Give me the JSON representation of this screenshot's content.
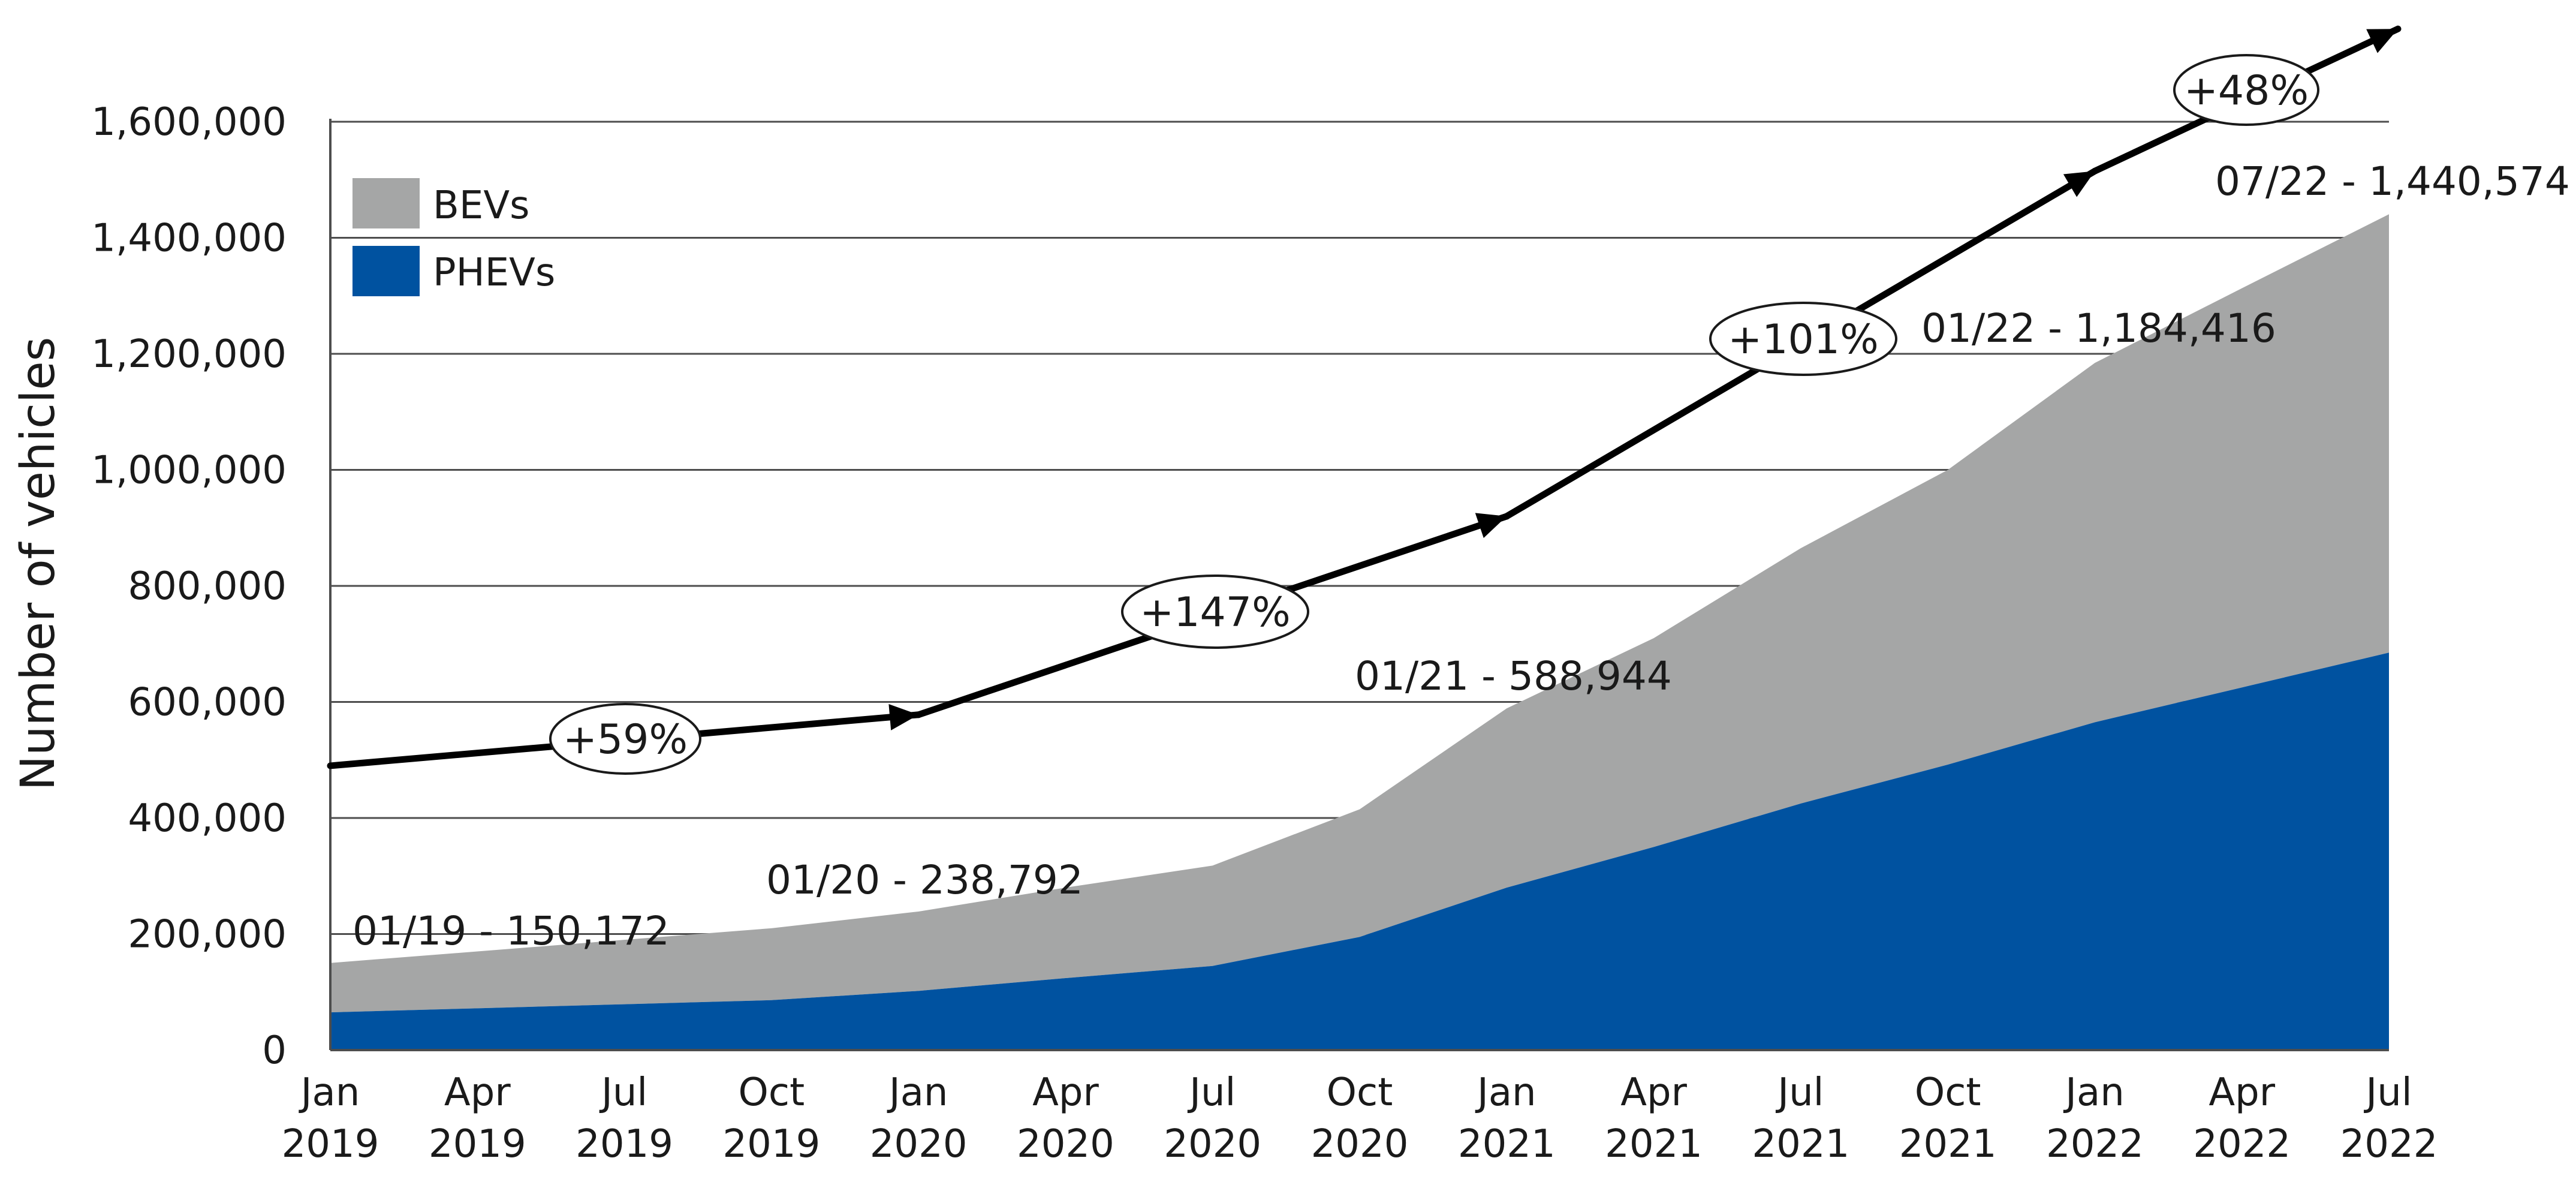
{
  "chart_data": {
    "type": "area",
    "title": "",
    "xlabel": "",
    "ylabel": "Number of vehicles",
    "ylim": [
      0,
      1600000
    ],
    "yticks": [
      "0",
      "200,000",
      "400,000",
      "600,000",
      "800,000",
      "1,000,000",
      "1,200,000",
      "1,400,000",
      "1,600,000"
    ],
    "ytick_values": [
      0,
      200000,
      400000,
      600000,
      800000,
      1000000,
      1200000,
      1400000,
      1600000
    ],
    "grid": "horizontal",
    "legend_position": "top-left",
    "categories": [
      {
        "month": "Jan",
        "year": "2019"
      },
      {
        "month": "Apr",
        "year": "2019"
      },
      {
        "month": "Jul",
        "year": "2019"
      },
      {
        "month": "Oct",
        "year": "2019"
      },
      {
        "month": "Jan",
        "year": "2020"
      },
      {
        "month": "Apr",
        "year": "2020"
      },
      {
        "month": "Jul",
        "year": "2020"
      },
      {
        "month": "Oct",
        "year": "2020"
      },
      {
        "month": "Jan",
        "year": "2021"
      },
      {
        "month": "Apr",
        "year": "2021"
      },
      {
        "month": "Jul",
        "year": "2021"
      },
      {
        "month": "Oct",
        "year": "2021"
      },
      {
        "month": "Jan",
        "year": "2022"
      },
      {
        "month": "Apr",
        "year": "2022"
      },
      {
        "month": "Jul",
        "year": "2022"
      }
    ],
    "series": [
      {
        "name": "PHEVs",
        "color": "#0052a0",
        "values": [
          65000,
          72000,
          79000,
          86000,
          102000,
          124000,
          145000,
          195000,
          280000,
          350000,
          425000,
          492000,
          565000,
          625000,
          685000
        ]
      },
      {
        "name": "BEVs",
        "color": "#a5a6a6",
        "values": [
          85172,
          98000,
          111000,
          124000,
          136792,
          156000,
          173000,
          220000,
          308944,
          360000,
          440000,
          508000,
          619416,
          688000,
          755574
        ]
      }
    ],
    "totals": [
      {
        "x": "2019-01",
        "value": 150172,
        "text": "01/19 - 150,172"
      },
      {
        "x": "2020-01",
        "value": 238792,
        "text": "01/20 - 238,792"
      },
      {
        "x": "2021-01",
        "value": 588944,
        "text": "01/21 - 588,944"
      },
      {
        "x": "2022-01",
        "value": 1184416,
        "text": "01/22 - 1,184,416"
      },
      {
        "x": "2022-07",
        "value": 1440574,
        "text": "07/22 - 1,440,574"
      }
    ],
    "growth_annotations": [
      {
        "from": "2019-01",
        "to": "2020-01",
        "text": "+59%"
      },
      {
        "from": "2020-01",
        "to": "2021-01",
        "text": "+147%"
      },
      {
        "from": "2021-01",
        "to": "2022-01",
        "text": "+101%"
      },
      {
        "from": "2022-01",
        "to": "2022-07",
        "text": "+48%"
      }
    ],
    "colors": {
      "phev": "#0052a0",
      "bev": "#a5a6a6",
      "grid": "#4d4d4d",
      "arrow": "#000000"
    }
  }
}
